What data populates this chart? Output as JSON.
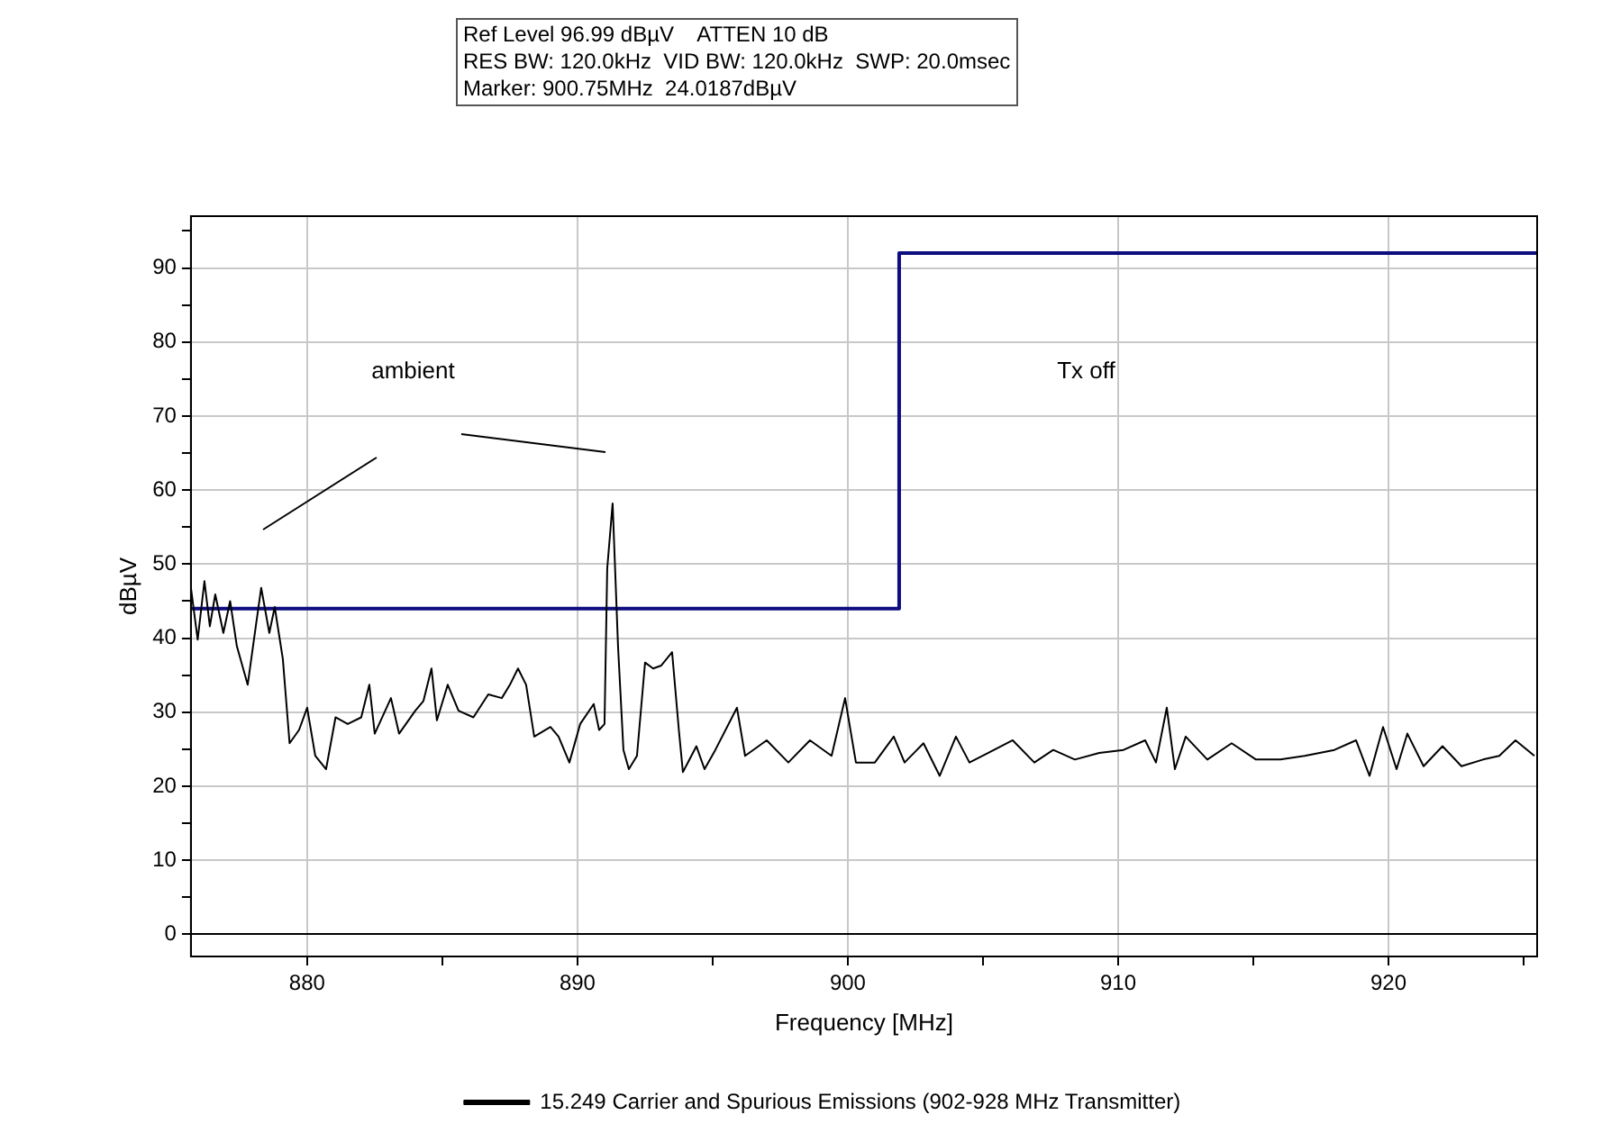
{
  "chart_data": {
    "type": "line",
    "xlabel": "Frequency [MHz]",
    "ylabel": "dBµV",
    "title": "Ref Level 96.99 dBµV    ATTEN 10 dB\nRES BW: 120.0kHz  VID BW: 120.0kHz  SWP: 20.0msec\nMarker: 900.75MHz  24.0187dBµV",
    "annotations": [
      "ambient",
      "Tx off"
    ],
    "xlim": [
      875.7,
      925.5
    ],
    "xticks": [
      880,
      {
        "value": 885,
        "label": null
      },
      890,
      {
        "value": 895,
        "label": null
      },
      900,
      {
        "value": 905,
        "label": null
      },
      910,
      {
        "value": 915,
        "label": null
      },
      920,
      {
        "value": 925,
        "label": null
      }
    ],
    "ylim": [
      -3,
      97
    ],
    "yticks": [
      0,
      {
        "value": 5,
        "label": null
      },
      10,
      {
        "value": 15,
        "label": null
      },
      20,
      {
        "value": 25,
        "label": null
      },
      30,
      {
        "value": 35,
        "label": null
      },
      40,
      {
        "value": 45,
        "label": null
      },
      50,
      {
        "value": 55,
        "label": null
      },
      60,
      {
        "value": 65,
        "label": null
      },
      70,
      {
        "value": 75,
        "label": null
      },
      80,
      {
        "value": 85,
        "label": null
      },
      90,
      {
        "value": 95,
        "label": null
      }
    ],
    "grid": true,
    "legend": "bottom",
    "marker": "none",
    "series": [
      {
        "name": "15.249 Carrier and Spurious Emissions (902-928 MHz Transmitter)",
        "color": "#000000",
        "x": [
          875.7,
          875.95,
          876.2,
          876.4,
          876.6,
          876.9,
          877.15,
          877.4,
          877.8,
          878.1,
          878.3,
          878.6,
          878.8,
          879.1,
          879.35,
          879.7,
          880.0,
          880.3,
          880.7,
          881.05,
          881.5,
          882.0,
          882.3,
          882.5,
          883.1,
          883.4,
          884.0,
          884.3,
          884.6,
          884.8,
          885.2,
          885.6,
          886.15,
          886.7,
          887.2,
          887.5,
          887.8,
          888.1,
          888.4,
          889.0,
          889.3,
          889.7,
          890.1,
          890.6,
          890.8,
          891.0,
          891.1,
          891.3,
          891.5,
          891.7,
          891.9,
          892.2,
          892.5,
          892.8,
          893.1,
          893.5,
          893.75,
          893.9,
          894.4,
          894.7,
          895.1,
          895.9,
          896.2,
          897.0,
          897.8,
          898.6,
          899.4,
          899.9,
          900.3,
          901.0,
          901.7,
          902.1,
          902.8,
          903.4,
          904.0,
          904.5,
          905.2,
          906.1,
          906.9,
          907.6,
          908.4,
          909.3,
          910.2,
          911.0,
          911.4,
          911.8,
          912.1,
          912.5,
          913.3,
          914.2,
          915.1,
          916.0,
          916.9,
          918.0,
          918.8,
          919.3,
          919.8,
          920.3,
          920.7,
          921.3,
          922.0,
          922.7,
          923.5,
          924.1,
          924.7,
          925.4
        ],
        "values": [
          46.8,
          39.8,
          47.7,
          41.6,
          45.9,
          40.7,
          45,
          38.9,
          33.7,
          41.6,
          46.8,
          40.7,
          44.2,
          37.2,
          25.8,
          27.6,
          30.6,
          24.1,
          22.3,
          29.3,
          28.4,
          29.3,
          33.7,
          27.1,
          31.9,
          27.1,
          30.2,
          31.5,
          35.9,
          28.9,
          33.7,
          30.2,
          29.3,
          32.4,
          31.9,
          33.7,
          35.9,
          33.7,
          26.7,
          28,
          26.7,
          23.2,
          28.4,
          31.1,
          27.6,
          28.4,
          49.4,
          58.2,
          38.9,
          24.9,
          22.3,
          24.1,
          36.7,
          35.9,
          36.3,
          38.1,
          27.6,
          21.9,
          25.4,
          22.3,
          24.9,
          30.6,
          24.1,
          26.2,
          23.2,
          26.2,
          24.1,
          31.9,
          23.2,
          23.2,
          26.7,
          23.2,
          25.8,
          21.4,
          26.7,
          23.2,
          24.5,
          26.2,
          23.2,
          24.9,
          23.6,
          24.5,
          24.9,
          26.2,
          23.2,
          30.6,
          22.3,
          26.7,
          23.6,
          25.8,
          23.6,
          23.6,
          24.1,
          24.9,
          26.2,
          21.4,
          28.0,
          22.3,
          27.1,
          22.7,
          25.4,
          22.7,
          23.6,
          24.1,
          26.2,
          24.1
        ]
      },
      {
        "type": "step",
        "color": "#0d0d80",
        "x": [
          875.7,
          901.9,
          925.5
        ],
        "values": [
          44,
          92,
          92
        ]
      }
    ]
  }
}
